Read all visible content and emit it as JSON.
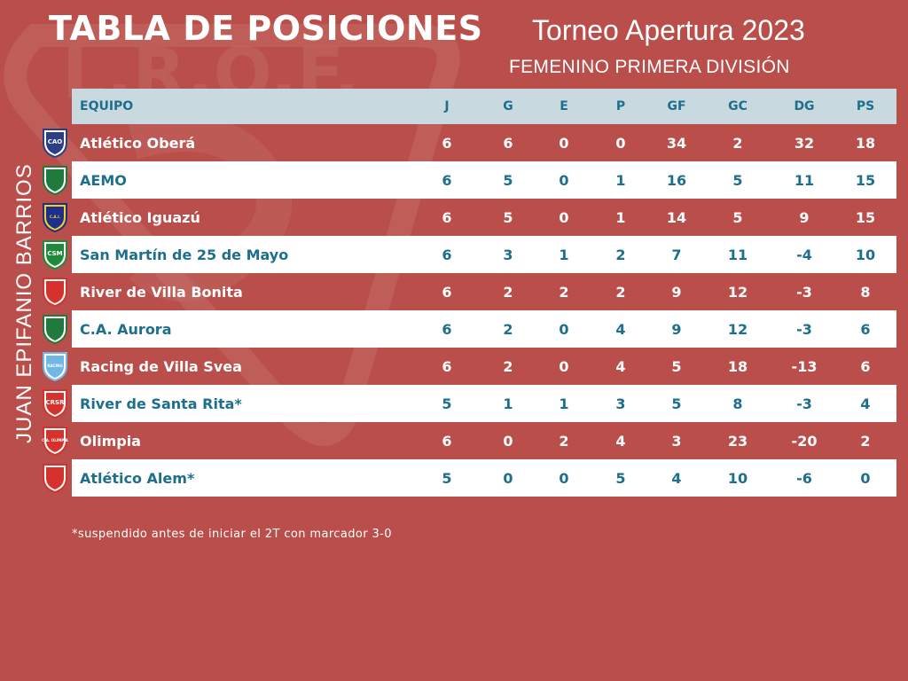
{
  "header": {
    "title": "TABLA DE POSICIONES",
    "tournament": "Torneo Apertura 2023",
    "division": "FEMENINO PRIMERA DIVISIÓN",
    "author": "JUAN EPIFANIO BARRIOS",
    "watermark_text": "L.R.O.F."
  },
  "table": {
    "columns": [
      "EQUIPO",
      "J",
      "G",
      "E",
      "P",
      "GF",
      "GC",
      "DG",
      "PS"
    ],
    "rows": [
      {
        "team": "Atlético Oberá",
        "J": "6",
        "G": "6",
        "E": "0",
        "P": "0",
        "GF": "34",
        "GC": "2",
        "DG": "32",
        "PS": "18",
        "logo": "cao-crest-icon",
        "crest_text": "CAO"
      },
      {
        "team": "AEMO",
        "J": "6",
        "G": "5",
        "E": "0",
        "P": "1",
        "GF": "16",
        "GC": "5",
        "DG": "11",
        "PS": "15",
        "logo": "aemo-crest-icon",
        "crest_text": ""
      },
      {
        "team": "Atlético Iguazú",
        "J": "6",
        "G": "5",
        "E": "0",
        "P": "1",
        "GF": "14",
        "GC": "5",
        "DG": "9",
        "PS": "15",
        "logo": "cai-crest-icon",
        "crest_text": "C.A.I."
      },
      {
        "team": "San Martín de 25 de Mayo",
        "J": "6",
        "G": "3",
        "E": "1",
        "P": "2",
        "GF": "7",
        "GC": "11",
        "DG": "-4",
        "PS": "10",
        "logo": "csm-crest-icon",
        "crest_text": "CSM"
      },
      {
        "team": "River de Villa Bonita",
        "J": "6",
        "G": "2",
        "E": "2",
        "P": "2",
        "GF": "9",
        "GC": "12",
        "DG": "-3",
        "PS": "8",
        "logo": "river-villa-bonita-crest-icon",
        "crest_text": ""
      },
      {
        "team": "C.A. Aurora",
        "J": "6",
        "G": "2",
        "E": "0",
        "P": "4",
        "GF": "9",
        "GC": "12",
        "DG": "-3",
        "PS": "6",
        "logo": "aurora-crest-icon",
        "crest_text": ""
      },
      {
        "team": "Racing de Villa Svea",
        "J": "6",
        "G": "2",
        "E": "0",
        "P": "4",
        "GF": "5",
        "GC": "18",
        "DG": "-13",
        "PS": "6",
        "logo": "racing-crest-icon",
        "crest_text": "RACING"
      },
      {
        "team": "River de Santa Rita*",
        "J": "5",
        "G": "1",
        "E": "1",
        "P": "3",
        "GF": "5",
        "GC": "8",
        "DG": "-3",
        "PS": "4",
        "logo": "crsr-crest-icon",
        "crest_text": "CRSR"
      },
      {
        "team": "Olimpia",
        "J": "6",
        "G": "0",
        "E": "2",
        "P": "4",
        "GF": "3",
        "GC": "23",
        "DG": "-20",
        "PS": "2",
        "logo": "olimpia-crest-icon",
        "crest_text": "C.A. OLIMPIA"
      },
      {
        "team": "Atlético Alem*",
        "J": "5",
        "G": "0",
        "E": "0",
        "P": "5",
        "GF": "4",
        "GC": "10",
        "DG": "-6",
        "PS": "0",
        "logo": "alem-crest-icon",
        "crest_text": ""
      }
    ]
  },
  "footnote": "*suspendido antes de iniciar el 2T con marcador 3-0",
  "colors": {
    "background": "#b94e4a",
    "header_row": "#c8d9e0",
    "accent_text": "#1e6f8c",
    "light_row": "#ffffff"
  }
}
